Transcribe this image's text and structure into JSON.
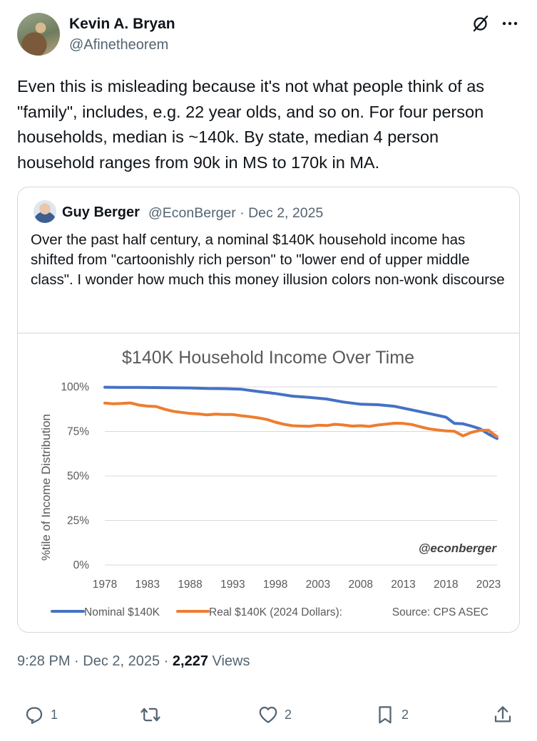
{
  "author": {
    "name": "Kevin A. Bryan",
    "handle": "@Afinetheorem"
  },
  "tweet": {
    "text": "Even this is misleading because it's not what people think of as \"family\", includes, e.g. 22 year olds, and so on. For four person households, median is ~140k. By state, median 4 person household ranges from 90k in MS to 170k in MA."
  },
  "quote": {
    "name": "Guy Berger",
    "meta": "@EconBerger · Dec 2, 2025",
    "text": "Over the past half century, a nominal $140K household income has shifted from \"cartoonishly rich person\" to \"lower end of upper middle class\".  I wonder how much this money illusion colors non-wonk discourse"
  },
  "footer": {
    "time": "9:28 PM · Dec 2, 2025 · ",
    "views_count": "2,227",
    "views_label": " Views"
  },
  "actions": {
    "replies": "1",
    "likes": "2",
    "bookmarks": "2"
  },
  "chart_data": {
    "type": "line",
    "title": "$140K Household Income Over Time",
    "xlabel": "",
    "ylabel": "%tile of Income Distribution",
    "ylim": [
      0,
      100
    ],
    "xlim": [
      1978,
      2024
    ],
    "x_ticks": [
      "1978",
      "1983",
      "1988",
      "1993",
      "1998",
      "2003",
      "2008",
      "2013",
      "2018",
      "2023"
    ],
    "y_ticks": [
      "0%",
      "25%",
      "50%",
      "75%",
      "100%"
    ],
    "watermark": "@econberger",
    "source": "Source: CPS ASEC",
    "series": [
      {
        "name": "Nominal $140K",
        "color": "#4472c4",
        "x": [
          1978,
          1980,
          1982,
          1984,
          1986,
          1988,
          1990,
          1992,
          1994,
          1996,
          1998,
          2000,
          2002,
          2004,
          2006,
          2008,
          2010,
          2012,
          2014,
          2016,
          2018,
          2019,
          2020,
          2021,
          2022,
          2023,
          2024
        ],
        "values": [
          99.8,
          99.7,
          99.7,
          99.6,
          99.5,
          99.4,
          99.1,
          99.0,
          98.7,
          97.4,
          96.3,
          94.8,
          94.1,
          93.2,
          91.5,
          90.3,
          90.0,
          89.1,
          87.1,
          85.1,
          83.0,
          79.5,
          79.3,
          78.0,
          76.5,
          73.5,
          71.0
        ]
      },
      {
        "name": "Real $140K (2024 Dollars):",
        "color": "#ed7d31",
        "x": [
          1978,
          1979,
          1980,
          1981,
          1982,
          1983,
          1984,
          1985,
          1986,
          1987,
          1988,
          1989,
          1990,
          1991,
          1992,
          1993,
          1994,
          1995,
          1996,
          1997,
          1998,
          1999,
          2000,
          2001,
          2002,
          2003,
          2004,
          2005,
          2006,
          2007,
          2008,
          2009,
          2010,
          2011,
          2012,
          2013,
          2014,
          2015,
          2016,
          2017,
          2018,
          2019,
          2020,
          2021,
          2022,
          2023,
          2024
        ],
        "values": [
          90.9,
          90.5,
          90.7,
          91.0,
          89.8,
          89.2,
          89.0,
          87.5,
          86.3,
          85.7,
          85.1,
          84.8,
          84.3,
          84.7,
          84.5,
          84.5,
          83.8,
          83.3,
          82.6,
          81.7,
          80.2,
          79.0,
          78.2,
          78.0,
          77.9,
          78.5,
          78.3,
          79.0,
          78.6,
          78.0,
          78.2,
          77.8,
          78.6,
          79.1,
          79.6,
          79.5,
          78.9,
          77.6,
          76.5,
          75.8,
          75.3,
          75.1,
          72.5,
          74.5,
          75.6,
          75.7,
          72.0
        ]
      }
    ]
  }
}
